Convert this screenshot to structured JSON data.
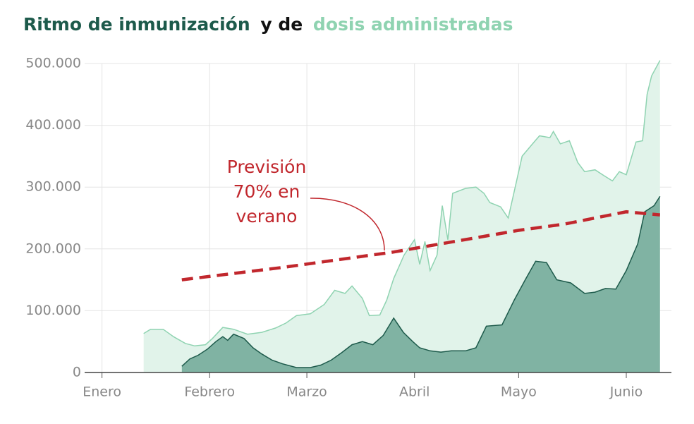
{
  "chart_data": {
    "type": "area",
    "title": [
      "Ritmo de inmunización",
      "y de",
      "dosis administradas"
    ],
    "annotation": [
      "Previsión",
      "70% en",
      "verano"
    ],
    "xlim": [
      -5,
      164
    ],
    "xticks": [
      {
        "value": 0,
        "label": "Enero"
      },
      {
        "value": 31,
        "label": "Febrero"
      },
      {
        "value": 59,
        "label": "Marzo"
      },
      {
        "value": 90,
        "label": "Abril"
      },
      {
        "value": 120,
        "label": "Mayo"
      },
      {
        "value": 151,
        "label": "Junio"
      }
    ],
    "ylim": [
      0,
      500000
    ],
    "yticks": [
      0,
      {
        "value": 100000,
        "label": "100.000"
      },
      {
        "value": 200000,
        "label": "200.000"
      },
      {
        "value": 300000,
        "label": "300.000"
      },
      {
        "value": 400000,
        "label": "400.000"
      },
      {
        "value": 500000,
        "label": "500.000"
      }
    ],
    "grid": true,
    "series": [
      {
        "name": "dosis administradas",
        "color": "#8fd3b1",
        "fill": "#e1f3ea",
        "x": [
          12,
          14,
          17.6,
          20.6,
          24,
          26.7,
          29.8,
          31.8,
          34.8,
          37.9,
          41.9,
          46,
          50,
          53,
          56,
          60,
          64,
          67,
          70,
          72,
          75,
          77,
          80,
          82,
          84,
          87,
          90,
          91.5,
          93,
          94.5,
          96.5,
          98,
          99.6,
          101,
          104.7,
          107.7,
          110,
          111.7,
          114.8,
          117,
          119,
          121,
          124,
          126,
          129,
          130,
          132,
          134.6,
          137,
          139,
          142,
          144.7,
          147,
          149,
          151,
          153.8,
          155.7,
          157,
          158.3,
          160.7
        ],
        "values": [
          63000,
          70000,
          70000,
          58000,
          47000,
          43000,
          45000,
          55000,
          73000,
          70000,
          62000,
          65000,
          72000,
          80000,
          92000,
          95000,
          110000,
          133000,
          128000,
          140000,
          120000,
          92000,
          93000,
          117000,
          152000,
          190000,
          215000,
          175000,
          212000,
          165000,
          190000,
          270000,
          215000,
          290000,
          298000,
          300000,
          290000,
          275000,
          268000,
          250000,
          300000,
          350000,
          370000,
          383000,
          380000,
          390000,
          370000,
          375000,
          340000,
          325000,
          328000,
          318000,
          310000,
          325000,
          320000,
          373000,
          375000,
          450000,
          480000,
          505000
        ]
      },
      {
        "name": "Ritmo de inmunización",
        "color": "#1d5a4b",
        "fill": "#80b3a3",
        "x": [
          23,
          25.3,
          27.7,
          30.4,
          32.8,
          34.8,
          36.2,
          37.9,
          40.9,
          43.5,
          46,
          49,
          52,
          56,
          60,
          63,
          66,
          69,
          72,
          75,
          78,
          81,
          84,
          86.8,
          89.5,
          91.5,
          94.5,
          97.6,
          100.6,
          104.7,
          107.7,
          110.7,
          115.2,
          118.8,
          121.9,
          124.9,
          128,
          131,
          135,
          139,
          142,
          145,
          148,
          151,
          154.3,
          156.3,
          159,
          160.7
        ],
        "values": [
          10000,
          22000,
          28000,
          38000,
          50000,
          58000,
          52000,
          62000,
          55000,
          40000,
          30000,
          20000,
          14000,
          8000,
          8000,
          12000,
          20000,
          32000,
          45000,
          50000,
          45000,
          60000,
          88000,
          65000,
          50000,
          40000,
          35000,
          33000,
          35000,
          35000,
          40000,
          75000,
          77000,
          118000,
          150000,
          180000,
          178000,
          150000,
          145000,
          128000,
          130000,
          136000,
          135000,
          165000,
          208000,
          260000,
          270000,
          285000
        ]
      },
      {
        "name": "Previsión",
        "type": "line",
        "color": "#c1272d",
        "x": [
          23,
          52,
          84,
          120,
          133,
          151,
          160.7
        ],
        "values": [
          150000,
          170000,
          195000,
          230000,
          240000,
          260000,
          255000
        ]
      }
    ]
  }
}
